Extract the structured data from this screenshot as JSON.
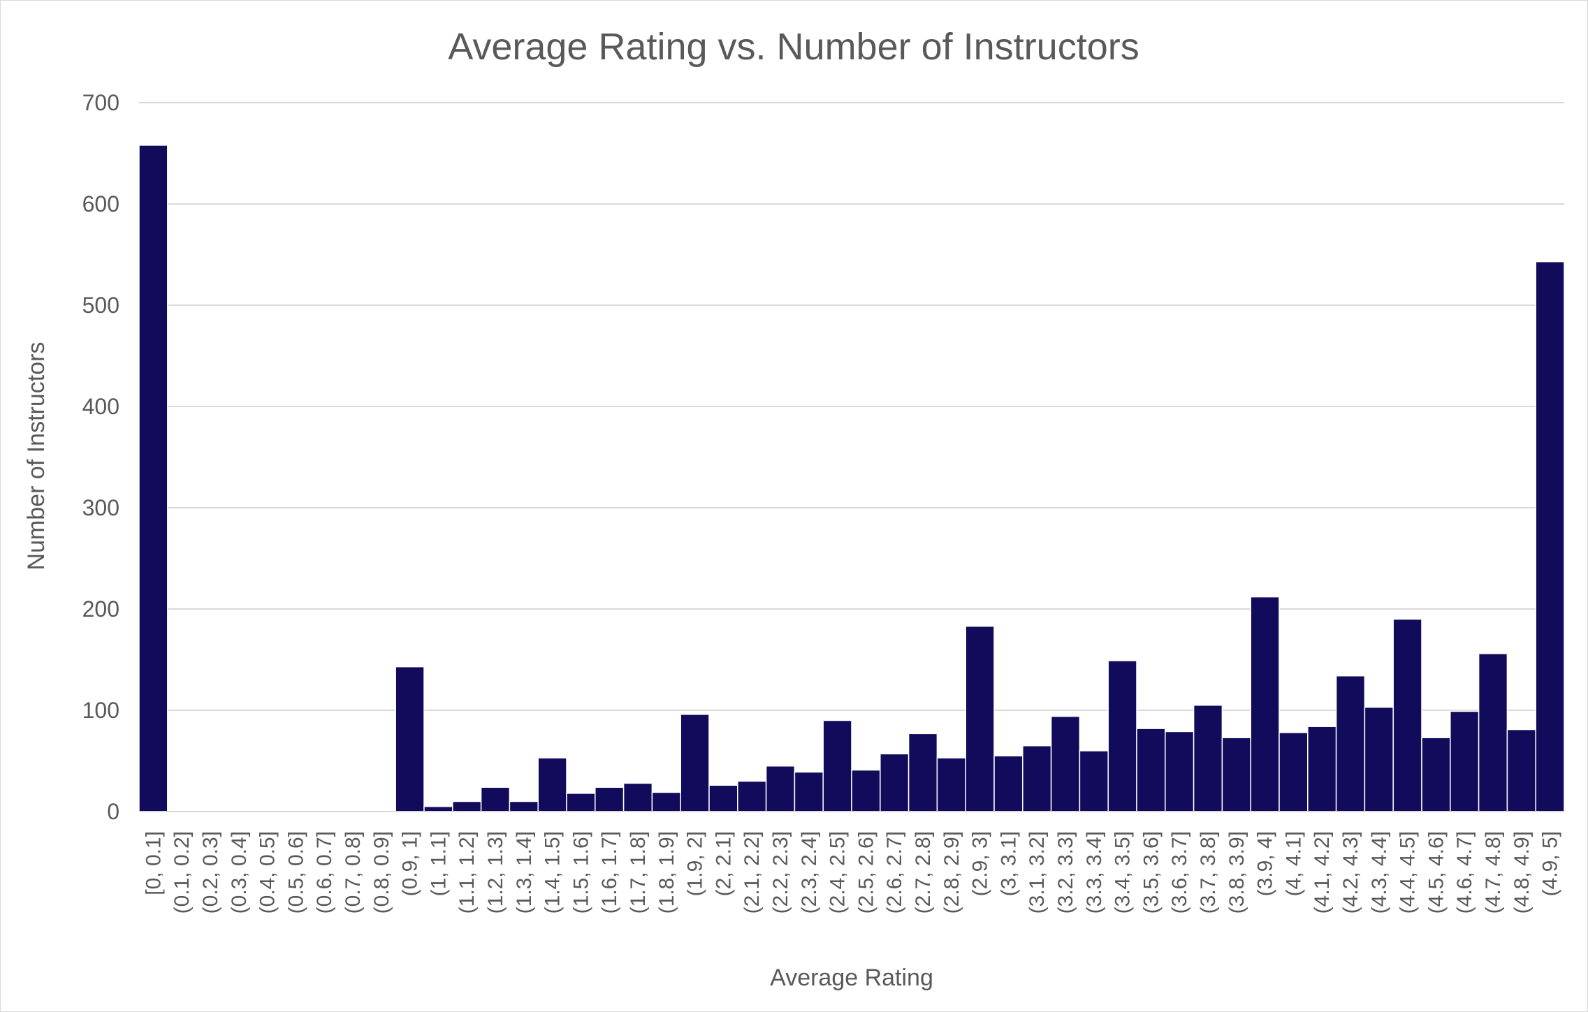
{
  "chart_data": {
    "type": "bar",
    "title": "Average Rating vs. Number of Instructors",
    "xlabel": "Average Rating",
    "ylabel": "Number of Instructors",
    "ylim": [
      0,
      700
    ],
    "yticks": [
      "0",
      "100",
      "200",
      "300",
      "400",
      "500",
      "600",
      "700"
    ],
    "grid": true,
    "bar_color": "#120a5a",
    "categories": [
      "[0, 0.1]",
      "(0.1, 0.2]",
      "(0.2, 0.3]",
      "(0.3, 0.4]",
      "(0.4, 0.5]",
      "(0.5, 0.6]",
      "(0.6, 0.7]",
      "(0.7, 0.8]",
      "(0.8, 0.9]",
      "(0.9, 1]",
      "(1, 1.1]",
      "(1.1, 1.2]",
      "(1.2, 1.3]",
      "(1.3, 1.4]",
      "(1.4, 1.5]",
      "(1.5, 1.6]",
      "(1.6, 1.7]",
      "(1.7, 1.8]",
      "(1.8, 1.9]",
      "(1.9, 2]",
      "(2, 2.1]",
      "(2.1, 2.2]",
      "(2.2, 2.3]",
      "(2.3, 2.4]",
      "(2.4, 2.5]",
      "(2.5, 2.6]",
      "(2.6, 2.7]",
      "(2.7, 2.8]",
      "(2.8, 2.9]",
      "(2.9, 3]",
      "(3, 3.1]",
      "(3.1, 3.2]",
      "(3.2, 3.3]",
      "(3.3, 3.4]",
      "(3.4, 3.5]",
      "(3.5, 3.6]",
      "(3.6, 3.7]",
      "(3.7, 3.8]",
      "(3.8, 3.9]",
      "(3.9, 4]",
      "(4, 4.1]",
      "(4.1, 4.2]",
      "(4.2, 4.3]",
      "(4.3, 4.4]",
      "(4.4, 4.5]",
      "(4.5, 4.6]",
      "(4.6, 4.7]",
      "(4.7, 4.8]",
      "(4.8, 4.9]",
      "(4.9, 5]"
    ],
    "values": [
      658,
      0,
      0,
      0,
      0,
      0,
      0,
      0,
      0,
      143,
      5,
      10,
      24,
      10,
      53,
      18,
      24,
      28,
      19,
      96,
      26,
      30,
      45,
      39,
      90,
      41,
      57,
      77,
      53,
      183,
      55,
      65,
      94,
      60,
      149,
      82,
      79,
      105,
      73,
      212,
      78,
      84,
      134,
      103,
      190,
      73,
      99,
      156,
      81,
      543
    ]
  }
}
